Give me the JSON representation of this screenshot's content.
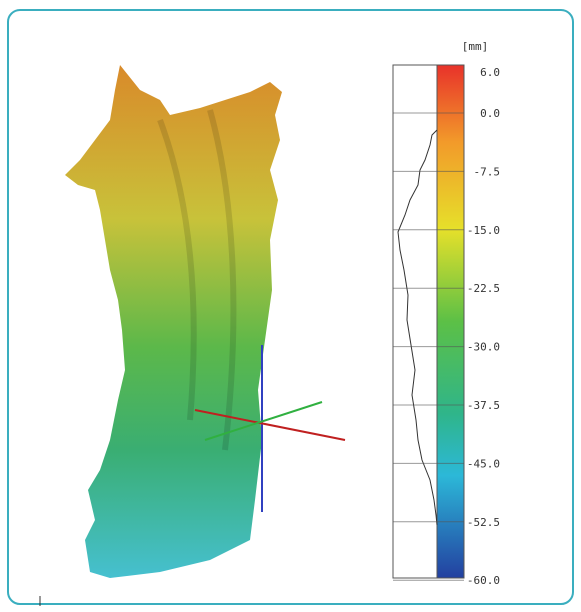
{
  "colorbar": {
    "unit": "[mm]",
    "tick_labels": [
      "6.0",
      "0.0",
      "-7.5",
      "-15.0",
      "-22.5",
      "-30.0",
      "-37.5",
      "-45.0",
      "-52.5",
      "-60.0"
    ]
  }
}
